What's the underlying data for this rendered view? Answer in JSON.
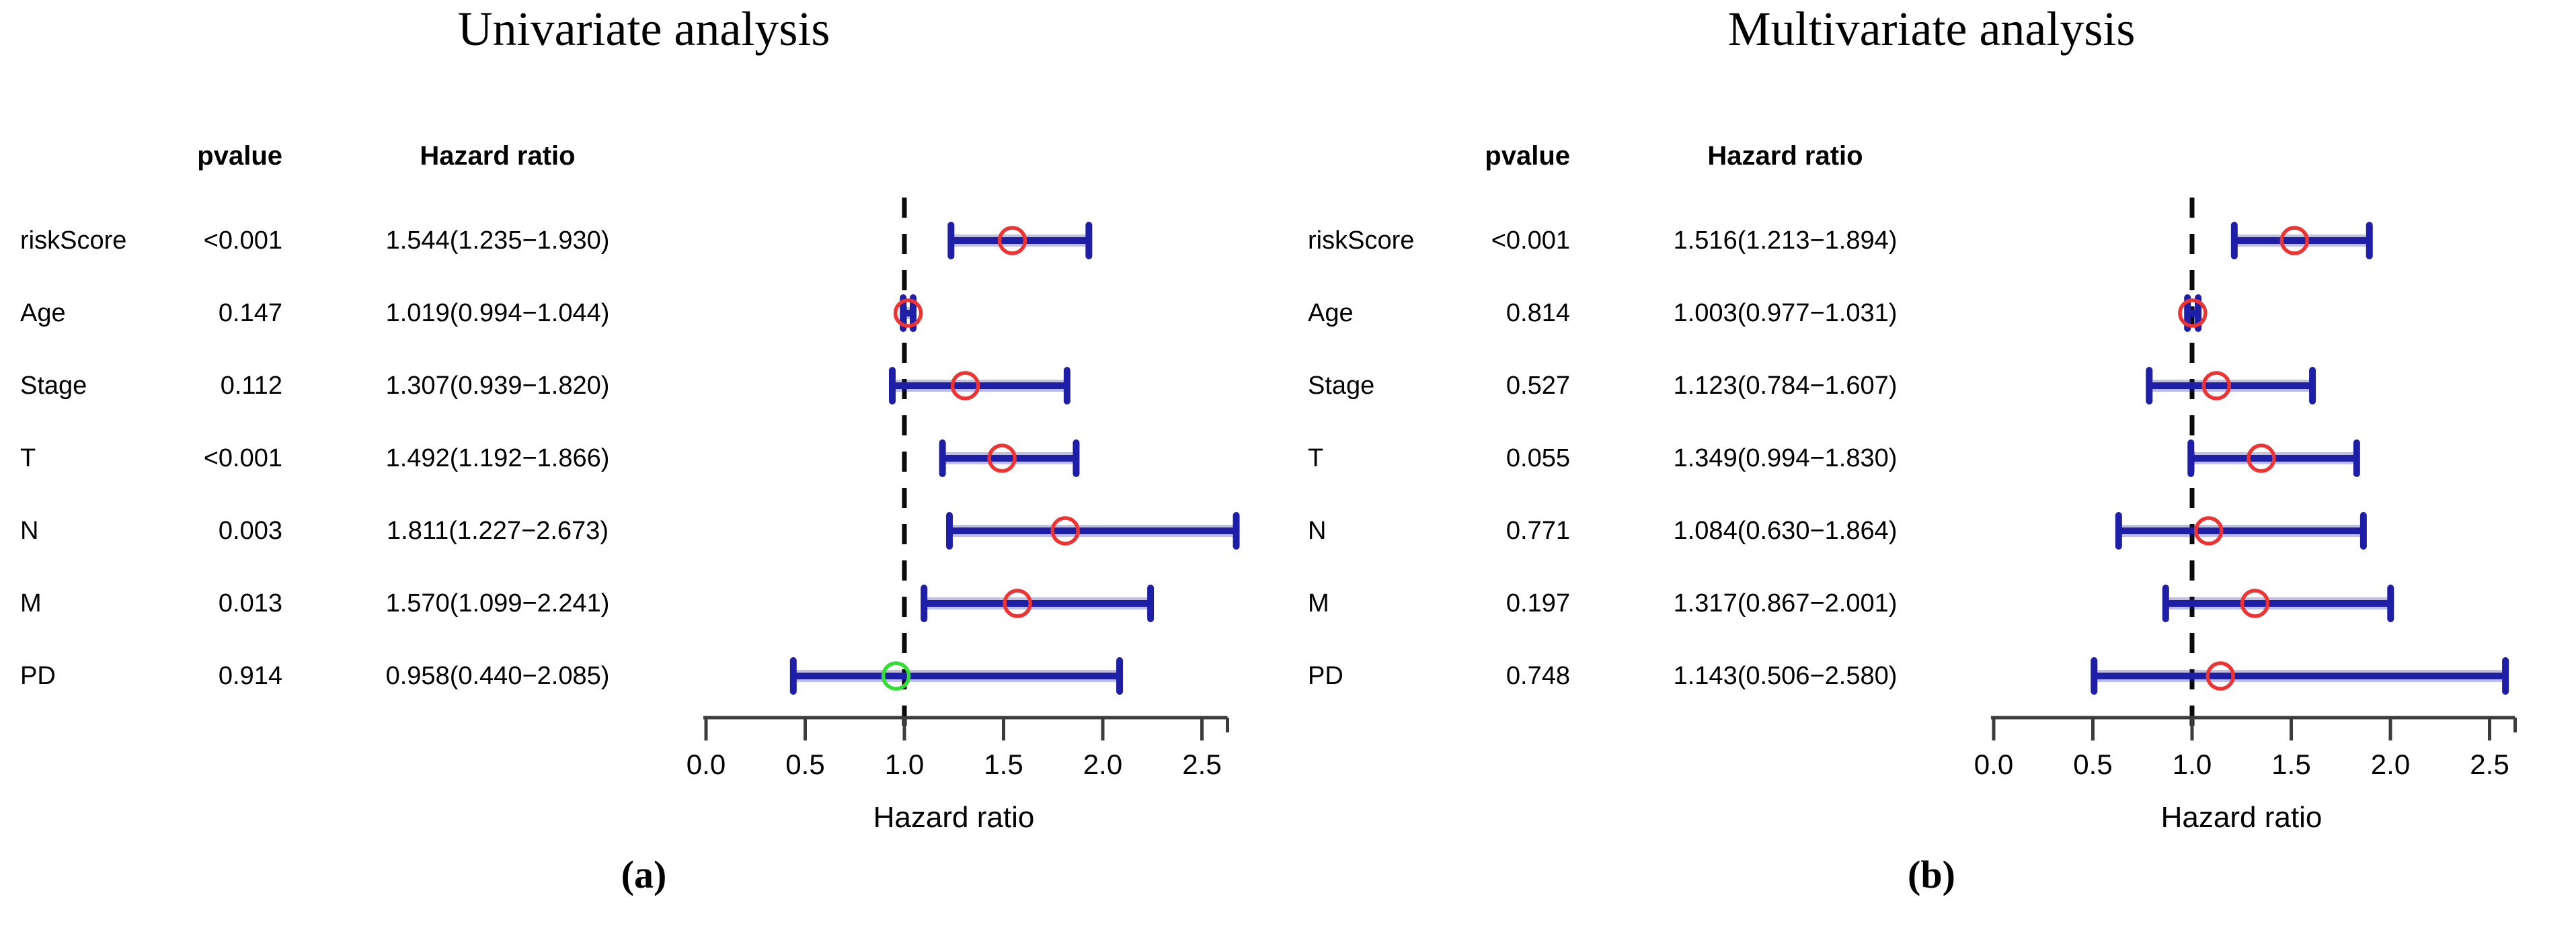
{
  "colors": {
    "bar": "#1e1ea6",
    "bar_halo": "#1e1ea6",
    "point_red": "#ee3333",
    "point_green": "#33dd33",
    "reference_line": "#0a0a0a",
    "axis": "#3c3c3c",
    "text": "#000000"
  },
  "chart_data": [
    {
      "type": "scatter",
      "subtype": "forest-plot",
      "panel": "a",
      "title": "Univariate analysis",
      "caption": "(a)",
      "columns": {
        "pvalue": "pvalue",
        "hazard_ratio": "Hazard ratio"
      },
      "xlabel": "Hazard ratio",
      "xlim": [
        0,
        2.5
      ],
      "xticks": [
        "0.0",
        "0.5",
        "1.0",
        "1.5",
        "2.0",
        "2.5"
      ],
      "reference_line": 1.0,
      "grid": false,
      "rows": [
        {
          "label": "riskScore",
          "pvalue": "<0.001",
          "hr_text": "1.544(1.235−1.930)",
          "hr": 1.544,
          "ci_low": 1.235,
          "ci_high": 1.93,
          "point_color": "red"
        },
        {
          "label": "Age",
          "pvalue": "0.147",
          "hr_text": "1.019(0.994−1.044)",
          "hr": 1.019,
          "ci_low": 0.994,
          "ci_high": 1.044,
          "point_color": "red"
        },
        {
          "label": "Stage",
          "pvalue": "0.112",
          "hr_text": "1.307(0.939−1.820)",
          "hr": 1.307,
          "ci_low": 0.939,
          "ci_high": 1.82,
          "point_color": "red"
        },
        {
          "label": "T",
          "pvalue": "<0.001",
          "hr_text": "1.492(1.192−1.866)",
          "hr": 1.492,
          "ci_low": 1.192,
          "ci_high": 1.866,
          "point_color": "red"
        },
        {
          "label": "N",
          "pvalue": "0.003",
          "hr_text": "1.811(1.227−2.673)",
          "hr": 1.811,
          "ci_low": 1.227,
          "ci_high": 2.673,
          "point_color": "red"
        },
        {
          "label": "M",
          "pvalue": "0.013",
          "hr_text": "1.570(1.099−2.241)",
          "hr": 1.57,
          "ci_low": 1.099,
          "ci_high": 2.241,
          "point_color": "red"
        },
        {
          "label": "PD",
          "pvalue": "0.914",
          "hr_text": "0.958(0.440−2.085)",
          "hr": 0.958,
          "ci_low": 0.44,
          "ci_high": 2.085,
          "point_color": "green"
        }
      ]
    },
    {
      "type": "scatter",
      "subtype": "forest-plot",
      "panel": "b",
      "title": "Multivariate analysis",
      "caption": "(b)",
      "columns": {
        "pvalue": "pvalue",
        "hazard_ratio": "Hazard ratio"
      },
      "xlabel": "Hazard ratio",
      "xlim": [
        0,
        2.5
      ],
      "xticks": [
        "0.0",
        "0.5",
        "1.0",
        "1.5",
        "2.0",
        "2.5"
      ],
      "reference_line": 1.0,
      "grid": false,
      "rows": [
        {
          "label": "riskScore",
          "pvalue": "<0.001",
          "hr_text": "1.516(1.213−1.894)",
          "hr": 1.516,
          "ci_low": 1.213,
          "ci_high": 1.894,
          "point_color": "red"
        },
        {
          "label": "Age",
          "pvalue": "0.814",
          "hr_text": "1.003(0.977−1.031)",
          "hr": 1.003,
          "ci_low": 0.977,
          "ci_high": 1.031,
          "point_color": "red"
        },
        {
          "label": "Stage",
          "pvalue": "0.527",
          "hr_text": "1.123(0.784−1.607)",
          "hr": 1.123,
          "ci_low": 0.784,
          "ci_high": 1.607,
          "point_color": "red"
        },
        {
          "label": "T",
          "pvalue": "0.055",
          "hr_text": "1.349(0.994−1.830)",
          "hr": 1.349,
          "ci_low": 0.994,
          "ci_high": 1.83,
          "point_color": "red"
        },
        {
          "label": "N",
          "pvalue": "0.771",
          "hr_text": "1.084(0.630−1.864)",
          "hr": 1.084,
          "ci_low": 0.63,
          "ci_high": 1.864,
          "point_color": "red"
        },
        {
          "label": "M",
          "pvalue": "0.197",
          "hr_text": "1.317(0.867−2.001)",
          "hr": 1.317,
          "ci_low": 0.867,
          "ci_high": 2.001,
          "point_color": "red"
        },
        {
          "label": "PD",
          "pvalue": "0.748",
          "hr_text": "1.143(0.506−2.580)",
          "hr": 1.143,
          "ci_low": 0.506,
          "ci_high": 2.58,
          "point_color": "red"
        }
      ]
    }
  ]
}
